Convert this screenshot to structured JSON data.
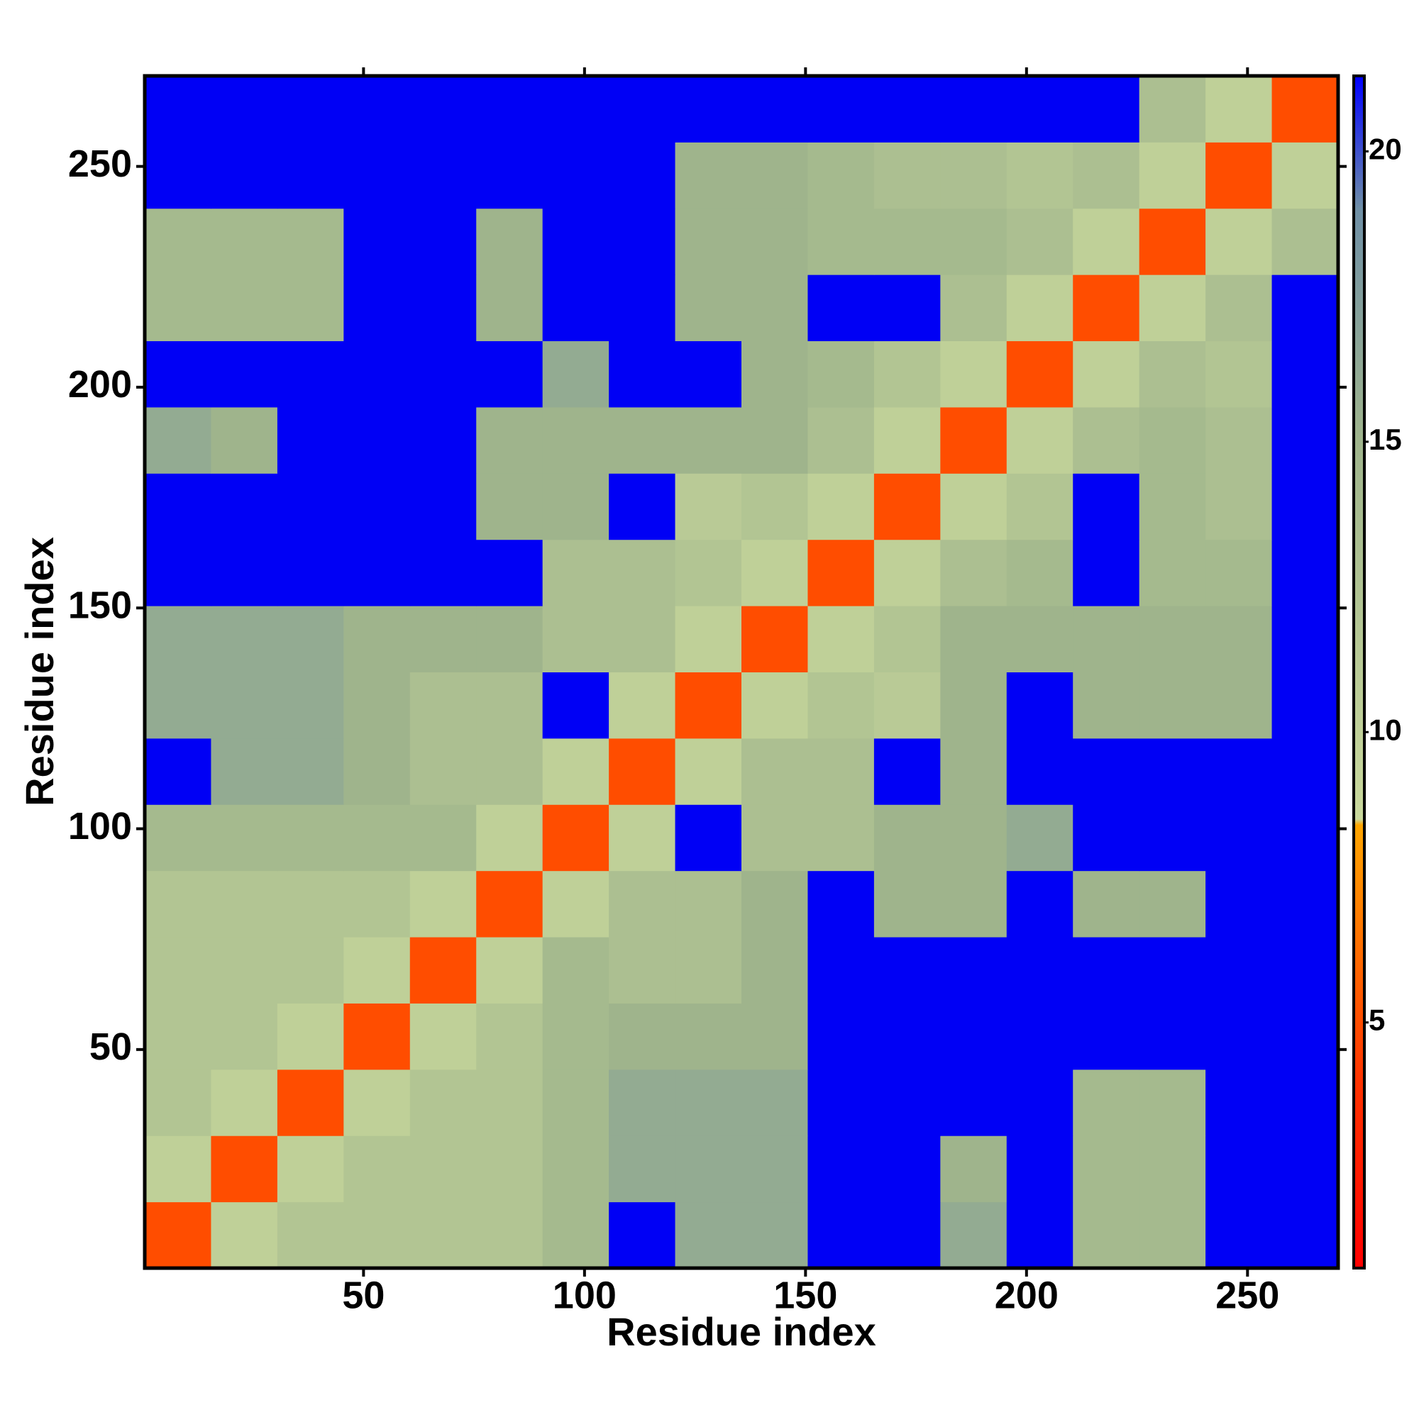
{
  "chart_data": {
    "type": "heatmap",
    "xlabel": "Residue index",
    "ylabel": "Residue index",
    "xbins": [
      0.5,
      15.5,
      30.5,
      45.5,
      60.5,
      75.5,
      90.5,
      105.5,
      120.5,
      135.5,
      150.5,
      165.5,
      180.5,
      195.5,
      210.5,
      225.5,
      240.5,
      255.5,
      270.5
    ],
    "ybins": [
      0.5,
      15.5,
      30.5,
      45.5,
      60.5,
      75.5,
      90.5,
      105.5,
      120.5,
      135.5,
      150.5,
      165.5,
      180.5,
      195.5,
      210.5,
      225.5,
      240.5,
      255.5,
      270.5
    ],
    "z": [
      [
        5,
        10,
        12,
        12,
        12,
        12,
        14,
        22,
        16,
        16,
        22,
        22,
        16,
        22,
        14,
        14,
        22,
        22
      ],
      [
        10,
        5,
        10,
        12,
        12,
        12,
        14,
        16,
        16,
        16,
        22,
        22,
        15,
        22,
        14,
        14,
        22,
        22
      ],
      [
        12,
        10,
        5,
        10,
        12,
        12,
        14,
        16,
        16,
        16,
        22,
        22,
        22,
        22,
        14,
        14,
        22,
        22
      ],
      [
        12,
        12,
        10,
        5,
        10,
        12,
        14,
        15,
        15,
        15,
        22,
        22,
        22,
        22,
        22,
        22,
        22,
        22
      ],
      [
        12,
        12,
        12,
        10,
        5,
        10,
        14,
        13,
        13,
        15,
        22,
        22,
        22,
        22,
        22,
        22,
        22,
        22
      ],
      [
        12,
        12,
        12,
        12,
        10,
        5,
        10,
        13,
        13,
        15,
        22,
        15,
        15,
        22,
        15,
        15,
        22,
        22
      ],
      [
        14,
        14,
        14,
        14,
        14,
        10,
        5,
        10,
        22,
        13,
        13,
        15,
        15,
        16,
        22,
        22,
        22,
        22
      ],
      [
        22,
        16,
        16,
        15,
        13,
        13,
        10,
        5,
        10,
        13,
        13,
        22,
        15,
        22,
        22,
        22,
        22,
        22
      ],
      [
        16,
        16,
        16,
        15,
        13,
        13,
        22,
        10,
        5,
        10,
        12,
        11,
        15,
        22,
        15,
        15,
        15,
        22
      ],
      [
        16,
        16,
        16,
        15,
        15,
        15,
        13,
        13,
        10,
        5,
        10,
        12,
        15,
        15,
        15,
        15,
        15,
        22
      ],
      [
        22,
        22,
        22,
        22,
        22,
        22,
        13,
        13,
        12,
        10,
        5,
        10,
        13,
        14,
        22,
        14,
        14,
        22
      ],
      [
        22,
        22,
        22,
        22,
        22,
        15,
        15,
        22,
        11,
        12,
        10,
        5,
        10,
        12,
        22,
        14,
        13,
        22
      ],
      [
        16,
        15,
        22,
        22,
        22,
        15,
        15,
        15,
        15,
        15,
        13,
        10,
        5,
        10,
        13,
        14,
        13,
        22
      ],
      [
        22,
        22,
        22,
        22,
        22,
        22,
        16,
        22,
        22,
        15,
        14,
        12,
        10,
        5,
        10,
        13,
        12,
        22
      ],
      [
        14,
        14,
        14,
        22,
        22,
        15,
        22,
        22,
        15,
        15,
        22,
        22,
        13,
        10,
        5,
        10,
        13,
        22
      ],
      [
        14,
        14,
        14,
        22,
        22,
        15,
        22,
        22,
        15,
        15,
        14,
        14,
        14,
        13,
        10,
        5,
        10,
        13
      ],
      [
        22,
        22,
        22,
        22,
        22,
        22,
        22,
        22,
        15,
        15,
        14,
        13,
        13,
        12,
        13,
        10,
        5,
        10
      ],
      [
        22,
        22,
        22,
        22,
        22,
        22,
        22,
        22,
        22,
        22,
        22,
        22,
        22,
        22,
        22,
        13,
        10,
        5
      ]
    ],
    "xlim": [
      0.5,
      270.5
    ],
    "ylim": [
      0.5,
      270.5
    ],
    "xticks": [
      50,
      100,
      150,
      200,
      250
    ],
    "yticks": [
      50,
      100,
      150,
      200,
      250
    ],
    "clim": [
      0.77,
      21.3
    ],
    "cticks": [
      5,
      10,
      15,
      20
    ],
    "colorscale": [
      [
        0.77,
        "#ff0000"
      ],
      [
        4,
        "#ff3300"
      ],
      [
        7,
        "#ff8000"
      ],
      [
        8.4,
        "#ffa500"
      ],
      [
        8.5,
        "#c9d89c"
      ],
      [
        15,
        "#9fb48c"
      ],
      [
        19,
        "#6f8fa5"
      ],
      [
        21.3,
        "#0000ff"
      ]
    ],
    "over_color": "#0000f5"
  }
}
